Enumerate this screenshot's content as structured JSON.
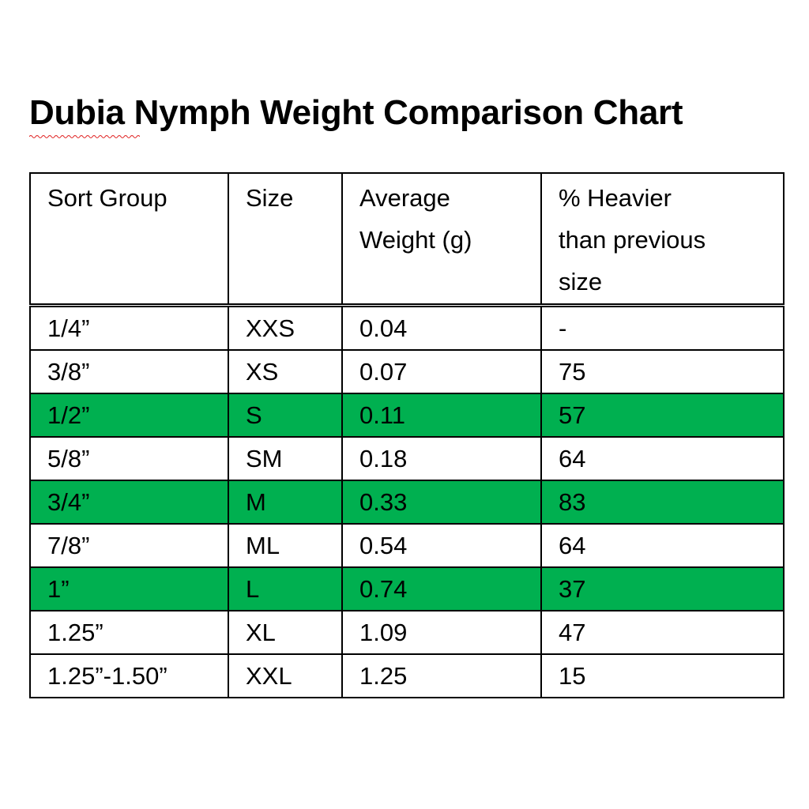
{
  "header": {
    "title": "Dubia Nymph Weight Comparison Chart"
  },
  "table": {
    "columns": [
      [
        "Sort Group"
      ],
      [
        "Size"
      ],
      [
        "Average",
        "Weight (g)"
      ],
      [
        "% Heavier",
        "than previous",
        "size"
      ]
    ],
    "rows": [
      {
        "cells": [
          "1/4”",
          "XXS",
          "0.04",
          "-"
        ]
      },
      {
        "cells": [
          "3/8”",
          "XS",
          "0.07",
          "75"
        ]
      },
      {
        "cells": [
          "1/2”",
          "S",
          "0.11",
          "57"
        ],
        "fill": "#00b050"
      },
      {
        "cells": [
          "5/8”",
          "SM",
          "0.18",
          "64"
        ]
      },
      {
        "cells": [
          "3/4”",
          "M",
          "0.33",
          "83"
        ],
        "fill": "#00b050"
      },
      {
        "cells": [
          "7/8”",
          "ML",
          "0.54",
          "64"
        ]
      },
      {
        "cells": [
          "1”",
          "L",
          "0.74",
          "37"
        ],
        "fill": "#00b050"
      },
      {
        "cells": [
          "1.25”",
          "XL",
          "1.09",
          "47"
        ]
      },
      {
        "cells": [
          "1.25”-1.50”",
          "XXL",
          "1.25",
          "15"
        ]
      }
    ]
  }
}
